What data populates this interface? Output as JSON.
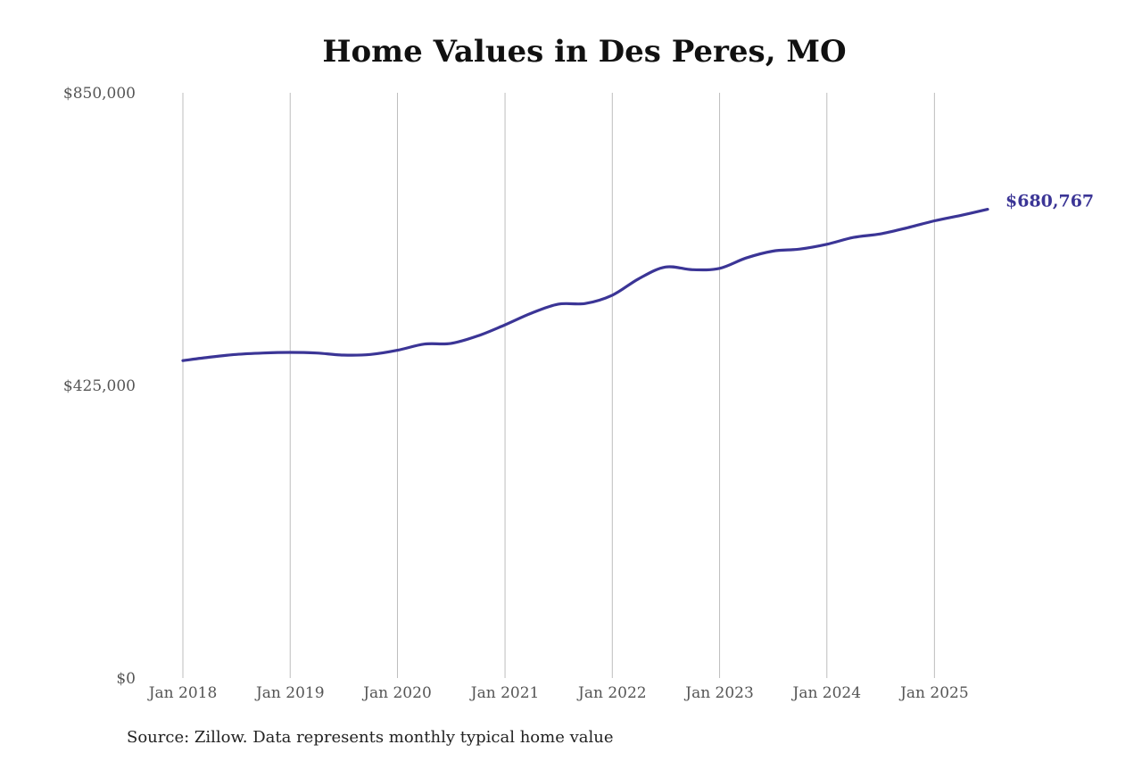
{
  "chart_data": {
    "type": "line",
    "title": "Home Values in Des Peres, MO",
    "source": "Source: Zillow. Data represents monthly typical home value",
    "xlabel": "",
    "ylabel": "",
    "ylim": [
      0,
      850000
    ],
    "y_ticks": [
      0,
      425000,
      850000
    ],
    "y_tick_labels": [
      "$0",
      "$425,000",
      "$850,000"
    ],
    "x_ticks": [
      "2018-01",
      "2019-01",
      "2020-01",
      "2021-01",
      "2022-01",
      "2023-01",
      "2024-01",
      "2025-01"
    ],
    "x_tick_labels": [
      "Jan 2018",
      "Jan 2019",
      "Jan 2020",
      "Jan 2021",
      "Jan 2022",
      "Jan 2023",
      "Jan 2024",
      "Jan 2025"
    ],
    "grid": "vertical",
    "line_color": "#3b3596",
    "end_label": "$680,767",
    "series": [
      {
        "x": [
          "2018-01",
          "2018-04",
          "2018-07",
          "2018-10",
          "2019-01",
          "2019-04",
          "2019-07",
          "2019-10",
          "2020-01",
          "2020-04",
          "2020-07",
          "2020-10",
          "2021-01",
          "2021-04",
          "2021-07",
          "2021-10",
          "2022-01",
          "2022-04",
          "2022-07",
          "2022-10",
          "2023-01",
          "2023-04",
          "2023-07",
          "2023-10",
          "2024-01",
          "2024-04",
          "2024-07",
          "2024-10",
          "2025-01",
          "2025-04",
          "2025-07"
        ],
        "values": [
          461000,
          466000,
          470000,
          472000,
          473000,
          472000,
          469000,
          470000,
          476000,
          485000,
          486000,
          497000,
          513000,
          530000,
          543000,
          544000,
          556000,
          580000,
          597000,
          593000,
          595000,
          610000,
          620000,
          623000,
          630000,
          640000,
          645000,
          654000,
          664000,
          672000,
          680767
        ]
      }
    ]
  }
}
